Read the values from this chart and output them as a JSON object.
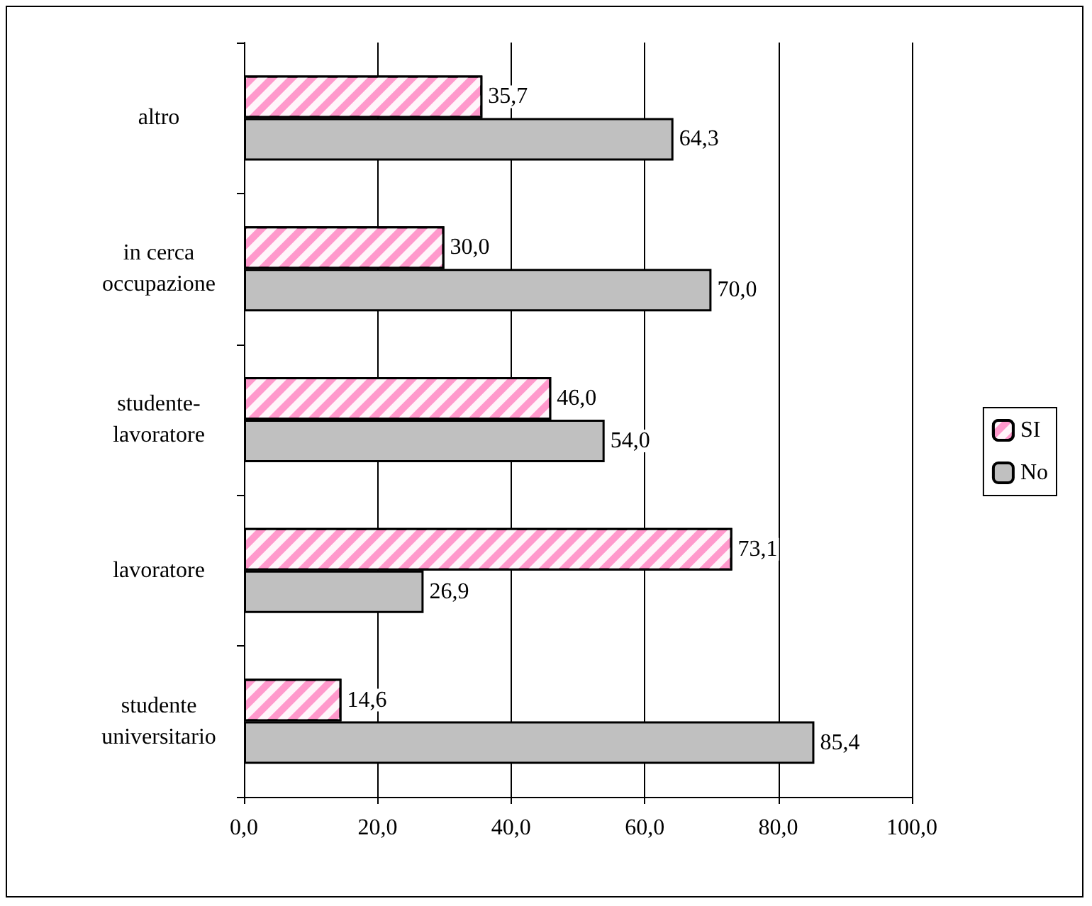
{
  "chart_data": {
    "type": "bar",
    "orientation": "horizontal",
    "categories": [
      "altro",
      "in cerca\noccupazione",
      "studente-\nlavoratore",
      "lavoratore",
      "studente\nuniversitario"
    ],
    "series": [
      {
        "name": "SI",
        "color": "#ff99cc",
        "values": [
          35.7,
          30.0,
          46.0,
          73.1,
          14.6
        ],
        "value_labels": [
          "35,7",
          "30,0",
          "46,0",
          "73,1",
          "14,6"
        ]
      },
      {
        "name": "No",
        "color": "#c0c0c0",
        "values": [
          64.3,
          70.0,
          54.0,
          26.9,
          85.4
        ],
        "value_labels": [
          "64,3",
          "70,0",
          "54,0",
          "26,9",
          "85,4"
        ]
      }
    ],
    "xlim": [
      0,
      100
    ],
    "xticks": [
      {
        "value": 0,
        "label": "0,0"
      },
      {
        "value": 20,
        "label": "20,0"
      },
      {
        "value": 40,
        "label": "40,0"
      },
      {
        "value": 60,
        "label": "60,0"
      },
      {
        "value": 80,
        "label": "80,0"
      },
      {
        "value": 100,
        "label": "100,0"
      }
    ],
    "grid": "x",
    "legend": "right"
  }
}
